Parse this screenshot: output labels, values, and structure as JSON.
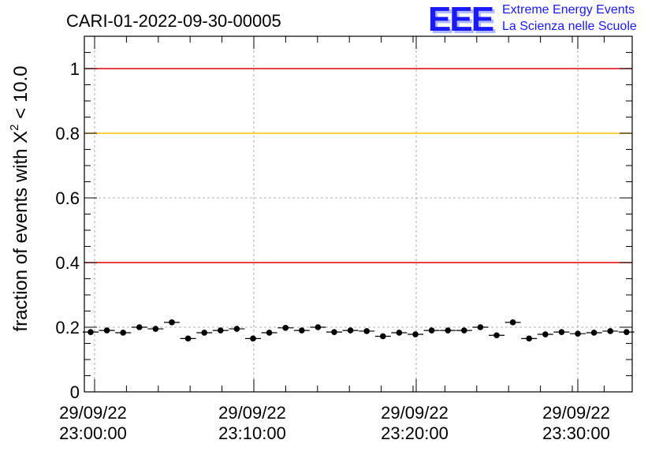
{
  "logo": {
    "mark": "EEE",
    "line1": "Extreme Energy Events",
    "line2": "La Scienza nelle Scuole"
  },
  "chart_data": {
    "type": "scatter",
    "title": "CARI-01-2022-09-30-00005",
    "ylabel_prefix": "fraction of events with ",
    "ylabel_symbol": "X",
    "ylabel_sup": "2",
    "ylabel_suffix": " < 10.0",
    "ylim": [
      0,
      1.1
    ],
    "yticks": [
      "0",
      "0.2",
      "0.4",
      "0.6",
      "0.8",
      "1"
    ],
    "xticks": [
      {
        "date": "29/09/22",
        "time": "23:00:00"
      },
      {
        "date": "29/09/22",
        "time": "23:10:00"
      },
      {
        "date": "29/09/22",
        "time": "23:20:00"
      },
      {
        "date": "29/09/22",
        "time": "23:30:00"
      }
    ],
    "grid": true,
    "reference_lines": [
      {
        "y": 1.0,
        "color": "#e00000"
      },
      {
        "y": 0.8,
        "color": "#ffc000"
      },
      {
        "y": 0.4,
        "color": "#e00000"
      }
    ],
    "series": [
      {
        "color": "#000000",
        "x": [
          0,
          1,
          2,
          3,
          4,
          5,
          6,
          7,
          8,
          9,
          10,
          11,
          12,
          13,
          14,
          15,
          16,
          17,
          18,
          19,
          20,
          21,
          22,
          23,
          24,
          25,
          26,
          27,
          28,
          29,
          30,
          31,
          32,
          33
        ],
        "values": [
          0.185,
          0.19,
          0.183,
          0.2,
          0.195,
          0.215,
          0.165,
          0.183,
          0.19,
          0.195,
          0.165,
          0.183,
          0.198,
          0.19,
          0.2,
          0.185,
          0.19,
          0.188,
          0.172,
          0.183,
          0.178,
          0.19,
          0.19,
          0.19,
          0.2,
          0.175,
          0.215,
          0.165,
          0.178,
          0.185,
          0.18,
          0.183,
          0.188,
          0.185
        ]
      }
    ]
  }
}
